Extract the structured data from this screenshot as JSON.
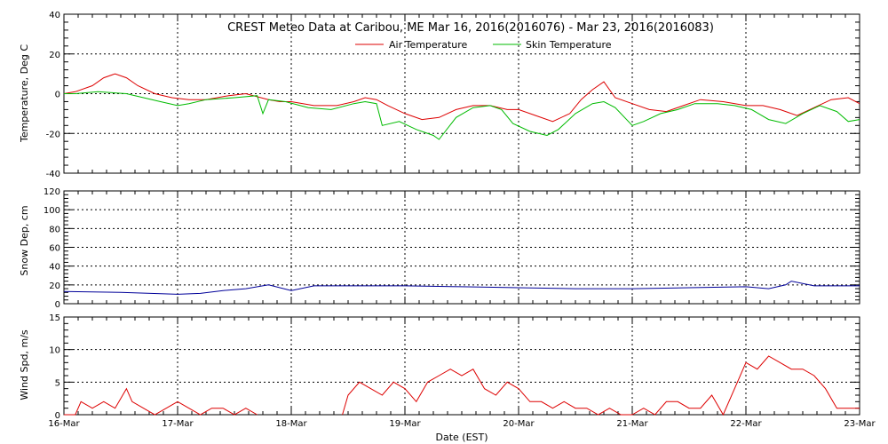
{
  "title": "CREST Meteo Data at Caribou, ME   Mar 16, 2016(2016076) - Mar 23, 2016(2016083)",
  "xlabel": "Date (EST)",
  "x_ticks": [
    "16-Mar",
    "17-Mar",
    "18-Mar",
    "19-Mar",
    "20-Mar",
    "21-Mar",
    "22-Mar",
    "23-Mar"
  ],
  "colors": {
    "air": "#dd0000",
    "skin": "#00bb00",
    "snow": "#000099",
    "wind": "#dd0000",
    "grid": "#000000"
  },
  "chart_data": [
    {
      "type": "line",
      "ylabel": "Temperature, Deg C",
      "xlim": [
        0,
        7
      ],
      "ylim": [
        -40,
        40
      ],
      "y_ticks": [
        "-40",
        "-20",
        "0",
        "20",
        "40"
      ],
      "legend_position": "top-center",
      "series": [
        {
          "name": "Air Temperature",
          "color": "#dd0000",
          "x": [
            0,
            0.1,
            0.25,
            0.35,
            0.45,
            0.55,
            0.65,
            0.8,
            0.95,
            1.1,
            1.25,
            1.45,
            1.6,
            1.8,
            1.9,
            2.0,
            2.2,
            2.4,
            2.55,
            2.65,
            2.75,
            2.85,
            3.0,
            3.15,
            3.3,
            3.45,
            3.6,
            3.75,
            3.9,
            4.0,
            4.15,
            4.3,
            4.45,
            4.55,
            4.65,
            4.75,
            4.85,
            5.0,
            5.15,
            5.3,
            5.45,
            5.6,
            5.8,
            6.0,
            6.15,
            6.3,
            6.45,
            6.6,
            6.75,
            6.9,
            7.0
          ],
          "y": [
            0,
            1,
            4,
            8,
            10,
            8,
            4,
            0,
            -2,
            -3,
            -3,
            -1,
            0,
            -3,
            -4,
            -4,
            -6,
            -6,
            -4,
            -2,
            -3,
            -6,
            -10,
            -13,
            -12,
            -8,
            -6,
            -6,
            -8,
            -8,
            -11,
            -14,
            -10,
            -3,
            2,
            6,
            -2,
            -5,
            -8,
            -9,
            -6,
            -3,
            -4,
            -6,
            -6,
            -8,
            -11,
            -7,
            -3,
            -2,
            -5
          ]
        },
        {
          "name": "Skin Temperature",
          "color": "#00bb00",
          "x": [
            0,
            0.1,
            0.3,
            0.55,
            0.7,
            0.85,
            1.0,
            1.1,
            1.25,
            1.5,
            1.7,
            1.75,
            1.8,
            1.95,
            2.15,
            2.35,
            2.55,
            2.65,
            2.75,
            2.8,
            2.95,
            3.1,
            3.25,
            3.3,
            3.45,
            3.6,
            3.75,
            3.85,
            3.95,
            4.1,
            4.25,
            4.35,
            4.5,
            4.65,
            4.75,
            4.85,
            5.0,
            5.1,
            5.25,
            5.4,
            5.55,
            5.75,
            5.9,
            6.05,
            6.2,
            6.35,
            6.5,
            6.65,
            6.8,
            6.9,
            7.0
          ],
          "y": [
            0,
            0,
            1,
            0,
            -2,
            -4,
            -6,
            -5,
            -3,
            -2,
            -1,
            -10,
            -3,
            -4,
            -7,
            -8,
            -5,
            -4,
            -5,
            -16,
            -14,
            -18,
            -21,
            -23,
            -12,
            -7,
            -6,
            -8,
            -15,
            -19,
            -21,
            -18,
            -10,
            -5,
            -4,
            -7,
            -16,
            -14,
            -10,
            -8,
            -5,
            -5,
            -6,
            -8,
            -13,
            -15,
            -10,
            -6,
            -9,
            -14,
            -13
          ]
        }
      ]
    },
    {
      "type": "line",
      "ylabel": "Snow Dep, cm",
      "xlim": [
        0,
        7
      ],
      "ylim": [
        0,
        120
      ],
      "y_ticks": [
        "0",
        "20",
        "40",
        "60",
        "80",
        "100",
        "120"
      ],
      "series": [
        {
          "color": "#000099",
          "x": [
            0,
            0.5,
            1.0,
            1.2,
            1.4,
            1.6,
            1.8,
            2.0,
            2.2,
            2.5,
            3.0,
            3.5,
            4.0,
            4.5,
            5.0,
            5.5,
            6.0,
            6.2,
            6.35,
            6.4,
            6.6,
            7.0
          ],
          "y": [
            13,
            12,
            10,
            11,
            14,
            16,
            20,
            14,
            19,
            19,
            19,
            18,
            17,
            16,
            16,
            17,
            18,
            16,
            20,
            24,
            19,
            19
          ]
        }
      ]
    },
    {
      "type": "line",
      "ylabel": "Wind Spd, m/s",
      "xlim": [
        0,
        7
      ],
      "ylim": [
        0,
        15
      ],
      "y_ticks": [
        "0",
        "5",
        "10",
        "15"
      ],
      "series": [
        {
          "color": "#dd0000",
          "segments": [
            {
              "x": [
                0,
                0.1,
                0.15,
                0.25,
                0.35,
                0.45,
                0.55,
                0.6,
                0.7,
                0.8,
                0.9,
                1.0,
                1.1,
                1.2,
                1.3,
                1.4,
                1.5,
                1.6,
                1.7
              ],
              "y": [
                0,
                0,
                2,
                1,
                2,
                1,
                4,
                2,
                1,
                0,
                1,
                2,
                1,
                0,
                1,
                1,
                0,
                1,
                0
              ]
            },
            {
              "x": [
                2.45,
                2.5,
                2.6,
                2.7,
                2.8,
                2.9,
                3.0,
                3.1,
                3.2,
                3.3,
                3.4,
                3.5,
                3.6,
                3.7,
                3.8,
                3.9,
                4.0,
                4.1,
                4.2,
                4.3,
                4.4,
                4.5,
                4.6,
                4.7,
                4.8,
                4.9,
                5.0,
                5.1,
                5.2,
                5.3,
                5.4,
                5.5,
                5.6,
                5.7,
                5.8,
                5.9,
                6.0,
                6.1,
                6.2,
                6.3,
                6.4,
                6.5,
                6.6,
                6.7,
                6.8,
                6.9,
                7.0
              ],
              "y": [
                0,
                3,
                5,
                4,
                3,
                5,
                4,
                2,
                5,
                6,
                7,
                6,
                7,
                4,
                3,
                5,
                4,
                2,
                2,
                1,
                2,
                1,
                1,
                0,
                1,
                0,
                0,
                1,
                0,
                2,
                2,
                1,
                1,
                3,
                0,
                4,
                8,
                7,
                9,
                8,
                7,
                7,
                6,
                4,
                1,
                1,
                1
              ]
            }
          ]
        }
      ]
    }
  ]
}
